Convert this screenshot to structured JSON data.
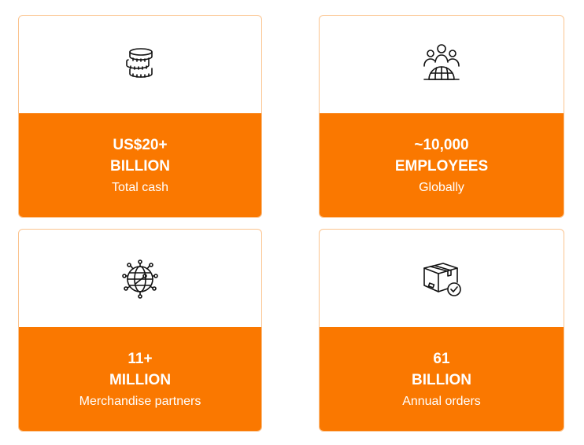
{
  "stats": [
    {
      "value": "US$20+",
      "unit": "BILLION",
      "label": "Total cash",
      "icon": "coins-icon"
    },
    {
      "value": "~10,000",
      "unit": "EMPLOYEES",
      "label": "Globally",
      "icon": "people-globe-icon"
    },
    {
      "value": "11+",
      "unit": "MILLION",
      "label": "Merchandise partners",
      "icon": "network-globe-icon"
    },
    {
      "value": "61",
      "unit": "BILLION",
      "label": "Annual orders",
      "icon": "package-check-icon"
    }
  ],
  "colors": {
    "accent": "#fa7800",
    "border": "#fbc48f"
  }
}
